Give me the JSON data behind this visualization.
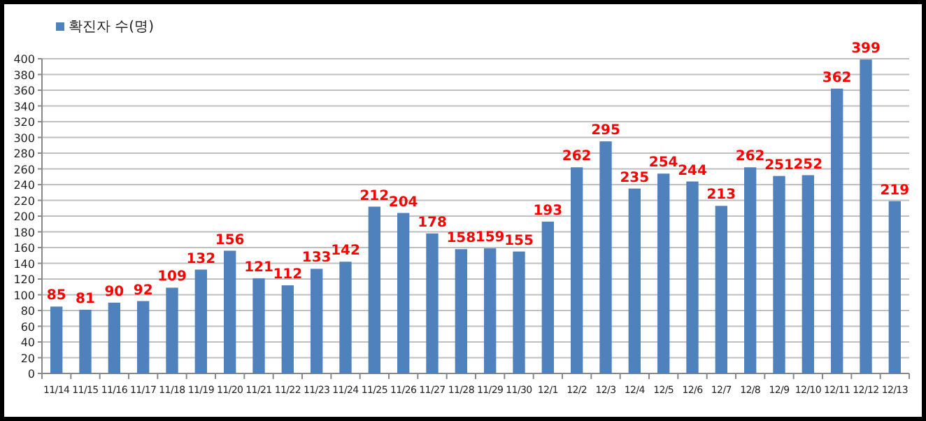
{
  "chart_data": {
    "type": "bar",
    "categories": [
      "11/14",
      "11/15",
      "11/16",
      "11/17",
      "11/18",
      "11/19",
      "11/20",
      "11/21",
      "11/22",
      "11/23",
      "11/24",
      "11/25",
      "11/26",
      "11/27",
      "11/28",
      "11/29",
      "11/30",
      "12/1",
      "12/2",
      "12/3",
      "12/4",
      "12/5",
      "12/6",
      "12/7",
      "12/8",
      "12/9",
      "12/10",
      "12/11",
      "12/12",
      "12/13"
    ],
    "series": [
      {
        "name": "확진자 수(명)",
        "color": "#4f81bd",
        "values": [
          85,
          81,
          90,
          92,
          109,
          132,
          156,
          121,
          112,
          133,
          142,
          212,
          204,
          178,
          158,
          159,
          155,
          193,
          262,
          295,
          235,
          254,
          244,
          213,
          262,
          251,
          252,
          362,
          399,
          219
        ]
      }
    ],
    "ylim": [
      0,
      400
    ],
    "yticks": [
      0,
      20,
      40,
      60,
      80,
      100,
      120,
      140,
      160,
      180,
      200,
      220,
      240,
      260,
      280,
      300,
      320,
      340,
      360,
      380,
      400
    ],
    "grid": "y",
    "legend": "top left",
    "data_labels": true
  }
}
